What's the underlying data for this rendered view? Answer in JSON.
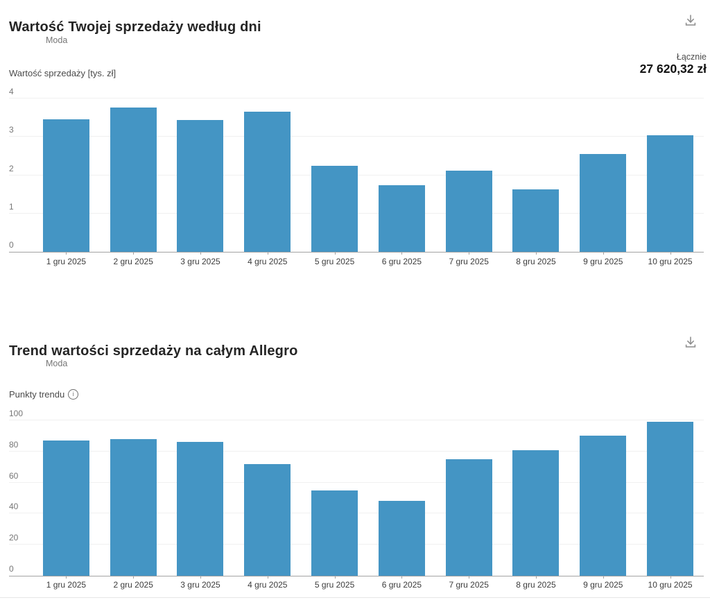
{
  "colors": {
    "bar": "#4495c4",
    "grid": "#f0f0f0",
    "axis": "#a3a3a3",
    "title": "#252525",
    "legend_text": "#757575",
    "tick_text": "#767676"
  },
  "icons": {
    "download": "download-icon",
    "info": "info-icon"
  },
  "info_icon_glyph": "i",
  "chart_data": [
    {
      "type": "bar",
      "title": "Wartość Twojej sprzedaży według dni",
      "legend": [
        "Moda"
      ],
      "legend_position": "top-left",
      "total_label": "Łącznie",
      "total_value": "27 620,32 zł",
      "ylabel": "Wartość sprzedaży [tys. zł]",
      "ylim": [
        0,
        4
      ],
      "yticks": [
        0,
        1,
        2,
        3,
        4
      ],
      "grid": true,
      "categories": [
        "1 gru 2025",
        "2 gru 2025",
        "3 gru 2025",
        "4 gru 2025",
        "5 gru 2025",
        "6 gru 2025",
        "7 gru 2025",
        "8 gru 2025",
        "9 gru 2025",
        "10 gru 2025"
      ],
      "values": [
        3.45,
        3.77,
        3.44,
        3.66,
        2.25,
        1.73,
        2.11,
        1.63,
        2.55,
        3.04
      ]
    },
    {
      "type": "bar",
      "title": "Trend wartości sprzedaży na całym Allegro",
      "legend": [
        "Moda"
      ],
      "legend_position": "top-left",
      "ylabel": "Punkty trendu",
      "has_info_icon": true,
      "ylim": [
        0,
        100
      ],
      "yticks": [
        0,
        20,
        40,
        60,
        80,
        100
      ],
      "grid": true,
      "categories": [
        "1 gru 2025",
        "2 gru 2025",
        "3 gru 2025",
        "4 gru 2025",
        "5 gru 2025",
        "6 gru 2025",
        "7 gru 2025",
        "8 gru 2025",
        "9 gru 2025",
        "10 gru 2025"
      ],
      "values": [
        87,
        88,
        86,
        72,
        55,
        48,
        75,
        81,
        90,
        99
      ]
    }
  ]
}
